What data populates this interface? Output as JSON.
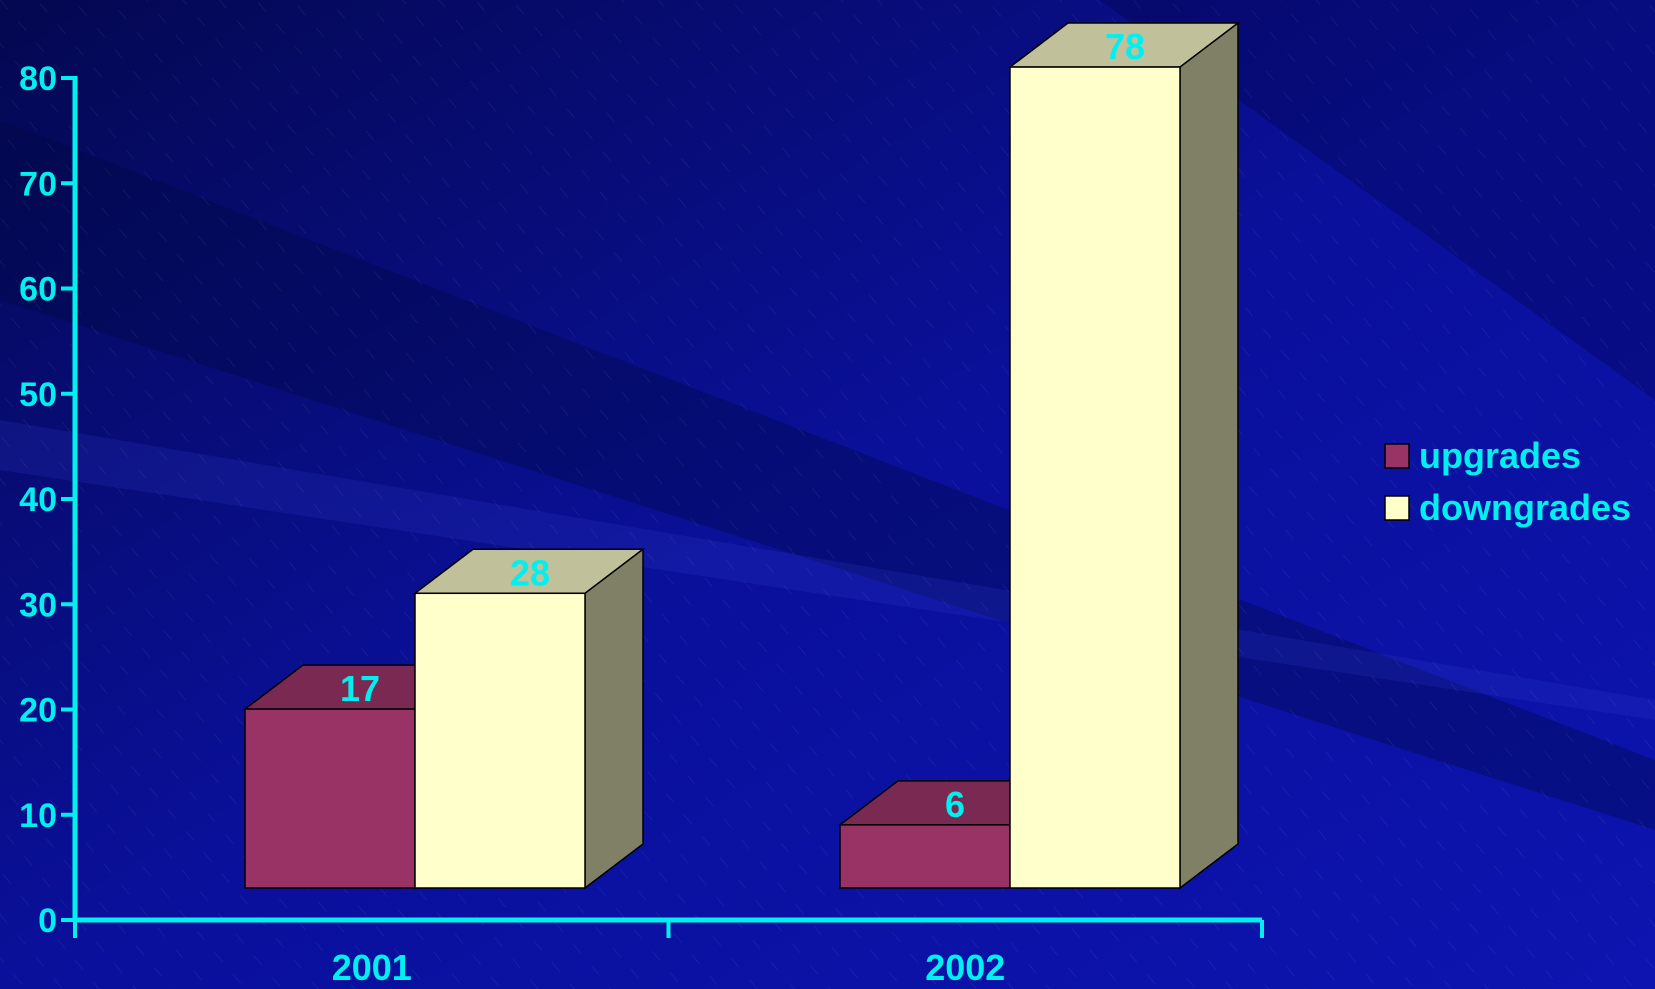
{
  "colors": {
    "axis": "#00f0f0",
    "label": "#00f0f0",
    "background_dark": "#050a5a",
    "background_mid": "#0a10a0",
    "upgrades_front": "#993366",
    "upgrades_top": "#7a2a52",
    "upgrades_side": "#5c1f3d",
    "downgrades_front": "#ffffcc",
    "downgrades_top": "#c0c09a",
    "downgrades_side": "#808066"
  },
  "chart_data": {
    "type": "bar",
    "style": "3d-clustered",
    "categories": [
      "2001",
      "2002"
    ],
    "series": [
      {
        "name": "upgrades",
        "values": [
          17,
          6
        ],
        "color": "#993366"
      },
      {
        "name": "downgrades",
        "values": [
          28,
          78
        ],
        "color": "#ffffcc"
      }
    ],
    "ylim": [
      0,
      80
    ],
    "yticks": [
      "0",
      "10",
      "20",
      "30",
      "40",
      "50",
      "60",
      "70",
      "80"
    ],
    "legend_position": "right",
    "data_labels": true,
    "grid": false,
    "title": "",
    "xlabel": "",
    "ylabel": ""
  }
}
